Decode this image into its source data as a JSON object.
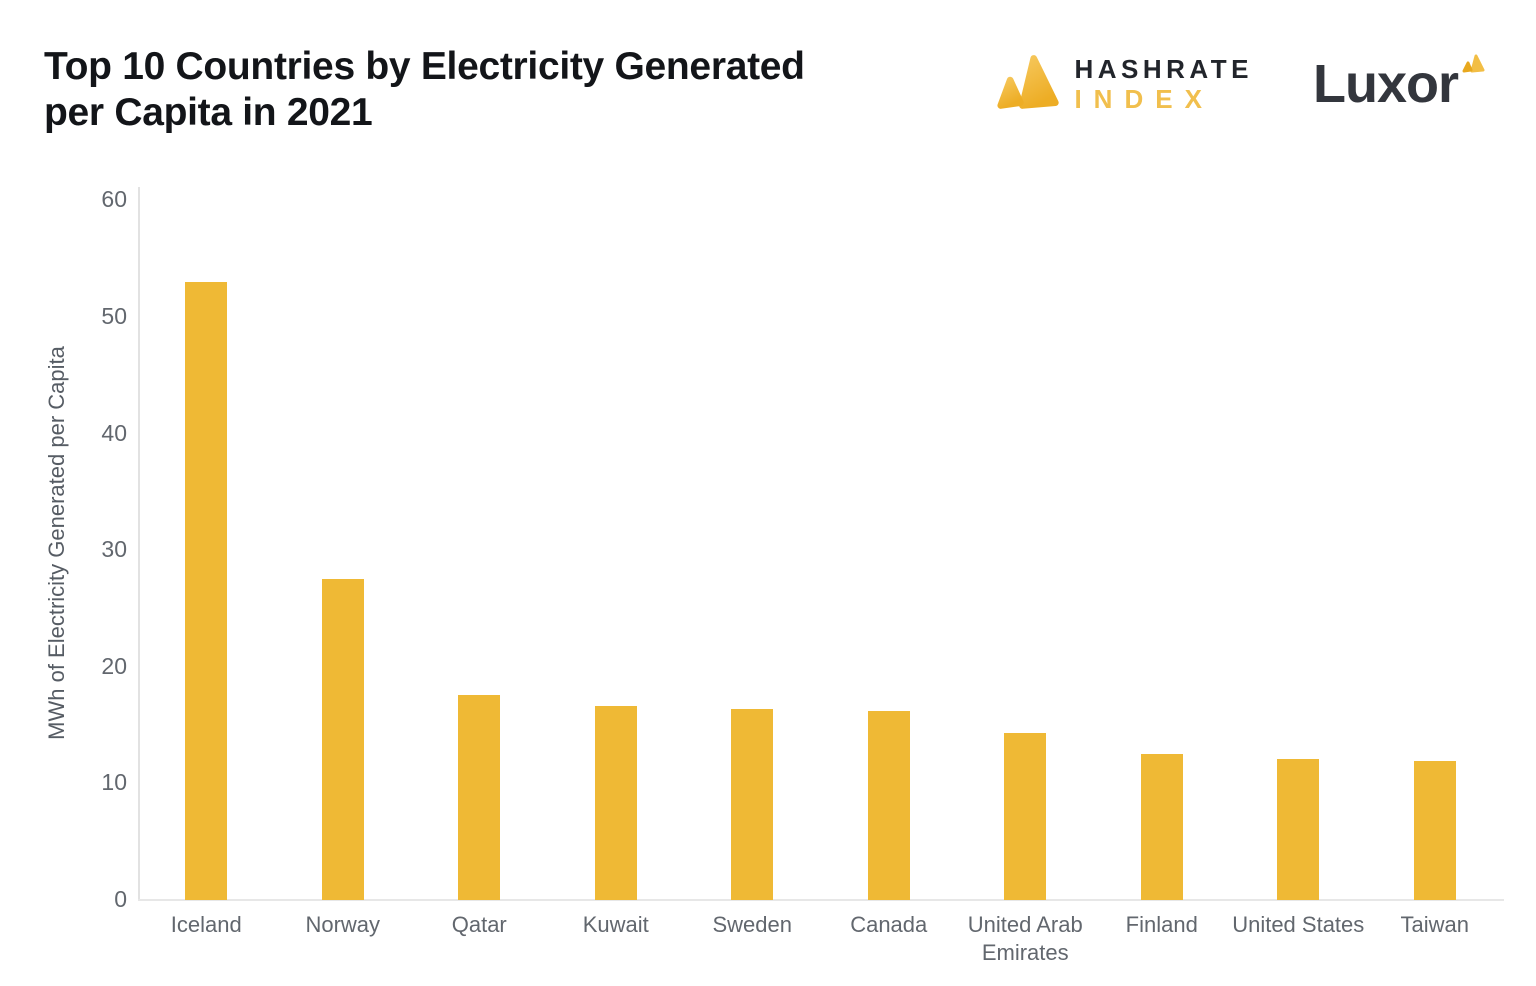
{
  "header": {
    "title_line1": "Top 10 Countries by Electricity Generated",
    "title_line2": "per Capita in 2021"
  },
  "logos": {
    "hashrate": {
      "line1": "HASHRATE",
      "line2": "INDEX"
    },
    "luxor": {
      "wordmark": "Luxor"
    }
  },
  "colors": {
    "bar_gold": "#EFB935",
    "accent_gold": "#F1BF4D",
    "icon_gold_light": "#F6C75B",
    "icon_gold_dark": "#EDAD25",
    "title_dark": "#131519",
    "gray_text": "#62676E",
    "axis_line": "#E2E2E2"
  },
  "chart_data": {
    "type": "bar",
    "title": "Top 10 Countries by Electricity Generated per Capita in 2021",
    "categories": [
      "Iceland",
      "Norway",
      "Qatar",
      "Kuwait",
      "Sweden",
      "Canada",
      "United Arab Emirates",
      "Finland",
      "United States",
      "Taiwan"
    ],
    "values": [
      53,
      27.5,
      17.6,
      16.6,
      16.4,
      16.2,
      14.3,
      12.5,
      12.1,
      11.9
    ],
    "xlabel": "",
    "ylabel": "MWh of Electricity Generated per Capita",
    "ylim": [
      0,
      60
    ],
    "yticks": [
      0,
      10,
      20,
      30,
      40,
      50,
      60
    ],
    "bar_color": "#EFB935",
    "grid": false,
    "legend_position": "none"
  }
}
